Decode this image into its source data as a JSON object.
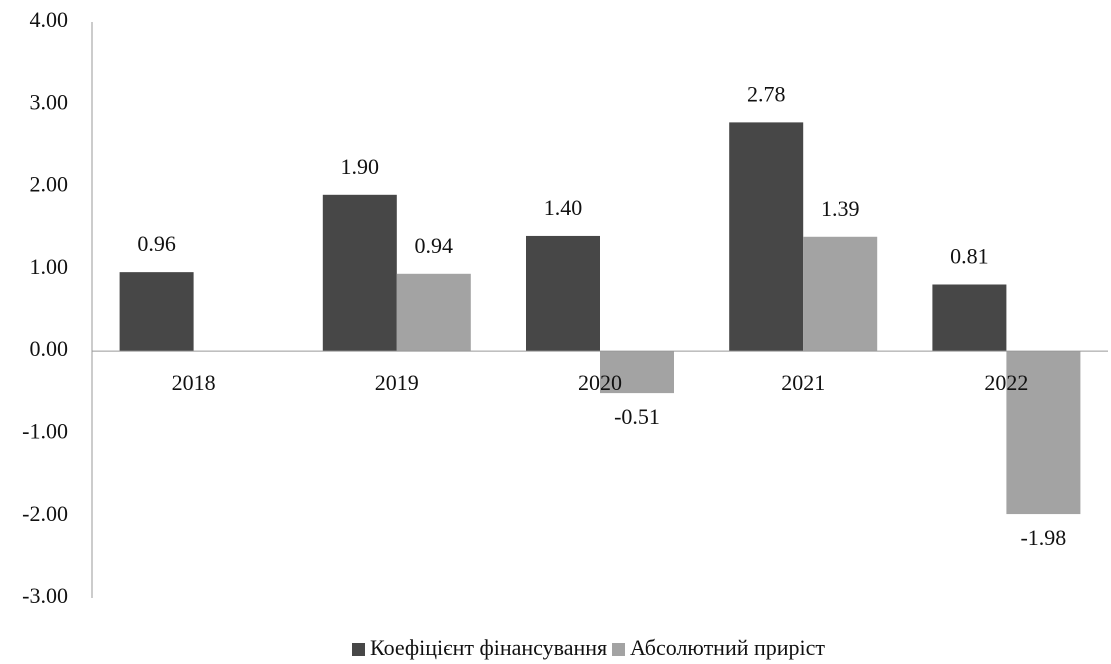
{
  "chart_data": {
    "type": "bar",
    "categories": [
      "2018",
      "2019",
      "2020",
      "2021",
      "2022"
    ],
    "series": [
      {
        "name": "Коефіцієнт фінансування",
        "color": "#474747",
        "values": [
          0.96,
          1.9,
          1.4,
          2.78,
          0.81
        ],
        "value_labels": [
          "0.96",
          "1.90",
          "1.40",
          "2.78",
          "0.81"
        ]
      },
      {
        "name": "Абсолютний приріст",
        "color": "#a3a3a3",
        "values": [
          null,
          0.94,
          -0.51,
          1.39,
          -1.98
        ],
        "value_labels": [
          null,
          "0.94",
          "-0.51",
          "1.39",
          "-1.98"
        ]
      }
    ],
    "ylim": [
      -3,
      4
    ],
    "yticks": [
      {
        "value": -3,
        "label": "-3.00"
      },
      {
        "value": -2,
        "label": "-2.00"
      },
      {
        "value": -1,
        "label": "-1.00"
      },
      {
        "value": 0,
        "label": "0.00"
      },
      {
        "value": 1,
        "label": "1.00"
      },
      {
        "value": 2,
        "label": "2.00"
      },
      {
        "value": 3,
        "label": "3.00"
      },
      {
        "value": 4,
        "label": "4.00"
      }
    ],
    "legend": "bottom"
  }
}
